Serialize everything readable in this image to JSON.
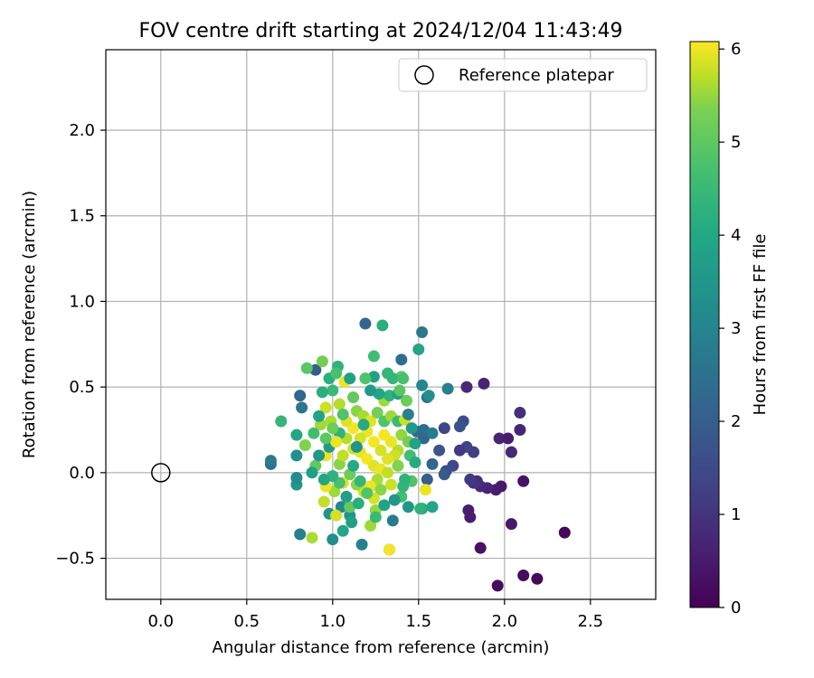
{
  "chart_data": {
    "type": "scatter",
    "title": "FOV centre drift starting at 2024/12/04 11:43:49",
    "xlabel": "Angular distance from reference (arcmin)",
    "ylabel": "Rotation from reference (arcmin)",
    "xlim": [
      -0.32,
      2.88
    ],
    "ylim": [
      -0.74,
      2.47
    ],
    "xticks": [
      "0.0",
      "0.5",
      "1.0",
      "1.5",
      "2.0",
      "2.5"
    ],
    "xtick_values": [
      0,
      0.5,
      1.0,
      1.5,
      2.0,
      2.5
    ],
    "yticks": [
      "−0.5",
      "0.0",
      "0.5",
      "1.0",
      "1.5",
      "2.0"
    ],
    "ytick_values": [
      -0.5,
      0,
      0.5,
      1.0,
      1.5,
      2.0
    ],
    "grid": true,
    "legend": {
      "placement": "top-right",
      "label": "Reference platepar"
    },
    "reference_point": {
      "x": 0.0,
      "y": 0.0
    },
    "colorbar": {
      "label": "Hours from first FF file",
      "colormap": "viridis",
      "range": [
        0,
        6.08
      ],
      "ticks": [
        "0",
        "1",
        "2",
        "3",
        "4",
        "5",
        "6"
      ],
      "tick_values": [
        0,
        1,
        2,
        3,
        4,
        5,
        6
      ]
    },
    "points": [
      [
        2.35,
        -0.35,
        0.1
      ],
      [
        2.19,
        -0.62,
        0.15
      ],
      [
        2.11,
        -0.6,
        0.2
      ],
      [
        1.96,
        -0.66,
        0.2
      ],
      [
        1.86,
        -0.44,
        0.3
      ],
      [
        2.04,
        -0.3,
        0.4
      ],
      [
        1.8,
        -0.26,
        0.5
      ],
      [
        1.79,
        -0.22,
        0.5
      ],
      [
        2.11,
        -0.05,
        0.3
      ],
      [
        1.98,
        -0.08,
        0.4
      ],
      [
        1.95,
        -0.1,
        0.5
      ],
      [
        1.9,
        -0.09,
        0.6
      ],
      [
        1.86,
        -0.08,
        0.7
      ],
      [
        1.84,
        -0.05,
        0.8
      ],
      [
        1.82,
        -0.06,
        0.9
      ],
      [
        1.8,
        -0.04,
        1.0
      ],
      [
        1.97,
        0.2,
        0.6
      ],
      [
        2.02,
        0.2,
        0.5
      ],
      [
        2.09,
        0.25,
        0.6
      ],
      [
        2.04,
        0.12,
        0.7
      ],
      [
        2.09,
        0.35,
        0.8
      ],
      [
        1.88,
        0.52,
        0.6
      ],
      [
        1.78,
        0.5,
        0.7
      ],
      [
        1.82,
        0.12,
        1.1
      ],
      [
        1.78,
        0.15,
        1.2
      ],
      [
        1.74,
        0.13,
        1.0
      ],
      [
        1.76,
        0.3,
        1.4
      ],
      [
        1.74,
        0.27,
        1.5
      ],
      [
        1.65,
        0.26,
        1.2
      ],
      [
        1.62,
        0.13,
        1.6
      ],
      [
        1.7,
        0.04,
        1.3
      ],
      [
        1.66,
        0.01,
        1.4
      ],
      [
        1.65,
        -0.01,
        1.7
      ],
      [
        1.58,
        0.05,
        2.0
      ],
      [
        1.55,
        -0.04,
        1.8
      ],
      [
        1.53,
        0.2,
        2.0
      ],
      [
        1.53,
        0.25,
        2.2
      ],
      [
        1.49,
        0.24,
        2.1
      ],
      [
        1.58,
        0.23,
        2.5
      ],
      [
        1.67,
        0.49,
        2.6
      ],
      [
        1.52,
        0.82,
        2.4
      ],
      [
        1.19,
        0.87,
        2.0
      ],
      [
        1.4,
        0.66,
        2.2
      ],
      [
        1.55,
        0.44,
        2.1
      ],
      [
        1.52,
        0.51,
        2.8
      ],
      [
        1.56,
        0.45,
        3.0
      ],
      [
        0.81,
        0.45,
        2.0
      ],
      [
        0.9,
        0.6,
        1.8
      ],
      [
        0.82,
        0.38,
        2.4
      ],
      [
        0.64,
        0.05,
        2.2
      ],
      [
        0.64,
        0.07,
        2.5
      ],
      [
        0.81,
        -0.36,
        2.6
      ],
      [
        1.0,
        -0.39,
        3.0
      ],
      [
        1.17,
        -0.42,
        2.7
      ],
      [
        1.35,
        -0.28,
        2.5
      ],
      [
        1.33,
        -0.45,
        1.5
      ],
      [
        1.52,
        -0.21,
        3.3
      ],
      [
        1.58,
        -0.2,
        3.6
      ],
      [
        1.51,
        -0.21,
        3.9
      ],
      [
        1.44,
        -0.2,
        3.2
      ],
      [
        1.5,
        0.72,
        3.6
      ],
      [
        1.29,
        0.86,
        3.8
      ],
      [
        1.24,
        0.68,
        4.2
      ],
      [
        1.32,
        0.58,
        4.0
      ],
      [
        1.24,
        0.56,
        3.5
      ],
      [
        1.19,
        0.55,
        4.4
      ],
      [
        1.4,
        0.56,
        4.6
      ],
      [
        1.35,
        0.55,
        4.0
      ],
      [
        1.03,
        0.62,
        3.9
      ],
      [
        0.94,
        0.65,
        4.8
      ],
      [
        0.85,
        0.61,
        4.5
      ],
      [
        0.7,
        0.3,
        4.0
      ],
      [
        0.79,
        0.22,
        3.6
      ],
      [
        0.79,
        0.1,
        3.0
      ],
      [
        0.79,
        -0.07,
        3.2
      ],
      [
        0.79,
        -0.03,
        2.9
      ],
      [
        0.88,
        -0.38,
        5.3
      ],
      [
        0.98,
        -0.24,
        3.1
      ],
      [
        1.05,
        -0.2,
        2.8
      ],
      [
        1.1,
        -0.25,
        3.2
      ],
      [
        1.22,
        -0.31,
        5.2
      ],
      [
        1.25,
        -0.22,
        5.1
      ],
      [
        1.4,
        -0.14,
        4.2
      ],
      [
        1.46,
        -0.05,
        4.4
      ],
      [
        1.41,
        -0.08,
        4.0
      ],
      [
        1.34,
        -0.07,
        5.6
      ],
      [
        1.54,
        -0.1,
        5.9
      ],
      [
        1.33,
        -0.45,
        6.0
      ],
      [
        0.95,
        -0.17,
        5.5
      ],
      [
        1.02,
        -0.25,
        5.7
      ],
      [
        1.01,
        -0.11,
        5.2
      ],
      [
        1.06,
        -0.06,
        5.8
      ],
      [
        1.1,
        -0.2,
        4.6
      ],
      [
        0.96,
        -0.08,
        5.9
      ],
      [
        0.96,
        0.1,
        5.9
      ],
      [
        1.04,
        0.05,
        5.0
      ],
      [
        1.08,
        0.2,
        5.4
      ],
      [
        0.99,
        0.3,
        5.3
      ],
      [
        0.93,
        0.28,
        5.2
      ],
      [
        0.89,
        0.23,
        4.2
      ],
      [
        0.84,
        0.16,
        4.9
      ],
      [
        0.9,
        0.04,
        4.6
      ],
      [
        0.96,
        0.38,
        5.6
      ],
      [
        1.04,
        0.4,
        5.4
      ],
      [
        1.07,
        0.53,
        5.9
      ],
      [
        1.0,
        0.48,
        4.1
      ],
      [
        0.94,
        0.47,
        3.8
      ],
      [
        0.92,
        0.33,
        3.5
      ],
      [
        0.98,
        0.15,
        3.3
      ],
      [
        1.04,
        0.23,
        3.9
      ],
      [
        1.12,
        0.44,
        4.6
      ],
      [
        1.14,
        0.36,
        5.0
      ],
      [
        1.18,
        0.33,
        5.3
      ],
      [
        1.22,
        0.3,
        5.8
      ],
      [
        1.26,
        0.35,
        4.8
      ],
      [
        1.3,
        0.3,
        4.4
      ],
      [
        1.34,
        0.33,
        5.2
      ],
      [
        1.38,
        0.3,
        4.1
      ],
      [
        1.42,
        0.31,
        5.6
      ],
      [
        1.4,
        0.22,
        5.1
      ],
      [
        1.44,
        0.18,
        4.8
      ],
      [
        1.45,
        0.1,
        4.2
      ],
      [
        1.38,
        0.13,
        5.4
      ],
      [
        1.34,
        0.18,
        5.9
      ],
      [
        1.3,
        0.22,
        6.0
      ],
      [
        1.28,
        0.13,
        5.7
      ],
      [
        1.24,
        0.18,
        6.0
      ],
      [
        1.2,
        0.24,
        5.9
      ],
      [
        1.16,
        0.2,
        5.7
      ],
      [
        1.12,
        0.26,
        6.0
      ],
      [
        1.08,
        0.3,
        5.8
      ],
      [
        1.12,
        0.14,
        5.6
      ],
      [
        1.16,
        0.12,
        5.9
      ],
      [
        1.2,
        0.08,
        6.0
      ],
      [
        1.24,
        0.04,
        5.8
      ],
      [
        1.28,
        0.02,
        5.9
      ],
      [
        1.32,
        0.0,
        5.5
      ],
      [
        1.26,
        -0.04,
        5.3
      ],
      [
        1.22,
        -0.08,
        5.9
      ],
      [
        1.18,
        -0.11,
        5.7
      ],
      [
        1.14,
        -0.07,
        5.0
      ],
      [
        1.1,
        -0.01,
        4.7
      ],
      [
        1.06,
        0.1,
        5.5
      ],
      [
        1.02,
        0.18,
        5.9
      ],
      [
        1.36,
        0.1,
        5.6
      ],
      [
        1.38,
        0.04,
        4.9
      ],
      [
        1.32,
        0.08,
        5.8
      ],
      [
        1.28,
        -0.1,
        5.0
      ],
      [
        1.24,
        -0.15,
        5.7
      ],
      [
        1.2,
        -0.12,
        4.4
      ],
      [
        1.16,
        -0.05,
        4.0
      ],
      [
        1.12,
        0.04,
        3.7
      ],
      [
        1.08,
        -0.14,
        3.4
      ],
      [
        1.04,
        -0.06,
        4.3
      ],
      [
        1.0,
        -0.02,
        3.9
      ],
      [
        0.95,
        -0.04,
        3.6
      ],
      [
        0.92,
        0.1,
        3.2
      ],
      [
        0.88,
        0.0,
        3.4
      ],
      [
        1.3,
        0.42,
        5.2
      ],
      [
        1.33,
        0.45,
        3.9
      ],
      [
        1.27,
        0.46,
        3.6
      ],
      [
        1.22,
        0.48,
        3.3
      ],
      [
        1.18,
        0.28,
        3.7
      ],
      [
        1.14,
        0.15,
        3.1
      ],
      [
        1.38,
        0.46,
        3.4
      ],
      [
        1.44,
        0.34,
        2.6
      ],
      [
        1.46,
        0.26,
        3.3
      ],
      [
        1.48,
        0.17,
        3.5
      ],
      [
        1.48,
        0.06,
        3.7
      ],
      [
        1.42,
        -0.04,
        3.9
      ],
      [
        1.36,
        -0.16,
        3.2
      ],
      [
        1.3,
        -0.19,
        3.5
      ],
      [
        1.25,
        -0.26,
        4.1
      ],
      [
        1.06,
        -0.34,
        3.6
      ],
      [
        1.11,
        -0.29,
        3.4
      ],
      [
        1.15,
        -0.18,
        3.8
      ],
      [
        1.06,
        0.34,
        4.4
      ],
      [
        1.0,
        0.26,
        4.7
      ],
      [
        0.96,
        0.2,
        4.5
      ],
      [
        1.41,
        0.55,
        4.3
      ],
      [
        1.39,
        0.48,
        4.5
      ],
      [
        1.43,
        0.42,
        4.7
      ],
      [
        0.98,
        0.55,
        3.8
      ],
      [
        1.1,
        0.55,
        3.4
      ],
      [
        1.02,
        0.58,
        4.3
      ]
    ]
  }
}
